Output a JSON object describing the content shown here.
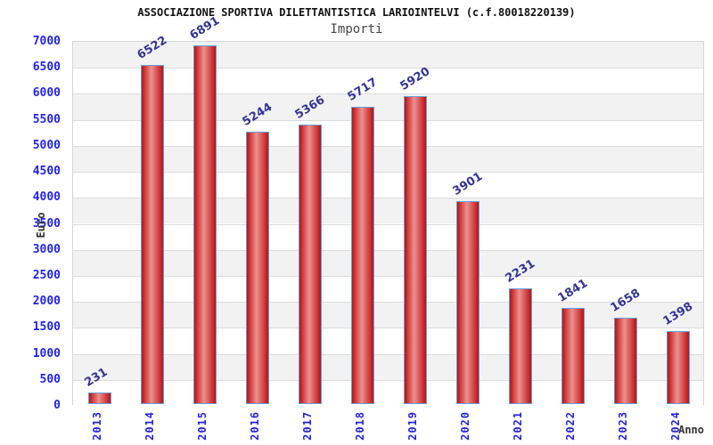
{
  "title": "ASSOCIAZIONE SPORTIVA DILETTANTISTICA LARIOINTELVI (c.f.80018220139)",
  "subtitle": "Importi",
  "chart_data": {
    "type": "bar",
    "title": "ASSOCIAZIONE SPORTIVA DILETTANTISTICA LARIOINTELVI (c.f.80018220139)",
    "subtitle": "Importi",
    "categories": [
      "2013",
      "2014",
      "2015",
      "2016",
      "2017",
      "2018",
      "2019",
      "2020",
      "2021",
      "2022",
      "2023",
      "2024"
    ],
    "values": [
      231,
      6522,
      6891,
      5244,
      5366,
      5717,
      5920,
      3901,
      2231,
      1841,
      1658,
      1398
    ],
    "xlabel": "Anno",
    "ylabel": "Euro",
    "ylim": [
      0,
      7000
    ],
    "ytick_step": 500,
    "grid": true,
    "legend": "none",
    "alternating_bands": true
  },
  "colors": {
    "bar_edge": "#64a0dc",
    "bar_dark": "#bb1111",
    "bar_light": "#ef9090",
    "band_gray": "#f2f2f2",
    "band_white": "#ffffff",
    "grid_line": "#dcdcdc",
    "ytick_label": "#2222ee",
    "xtick_label": "#2222dd",
    "value_label": "#333399",
    "title_color": "#111111",
    "subtitle_color": "#444444",
    "axis_title_color": "#333333"
  }
}
